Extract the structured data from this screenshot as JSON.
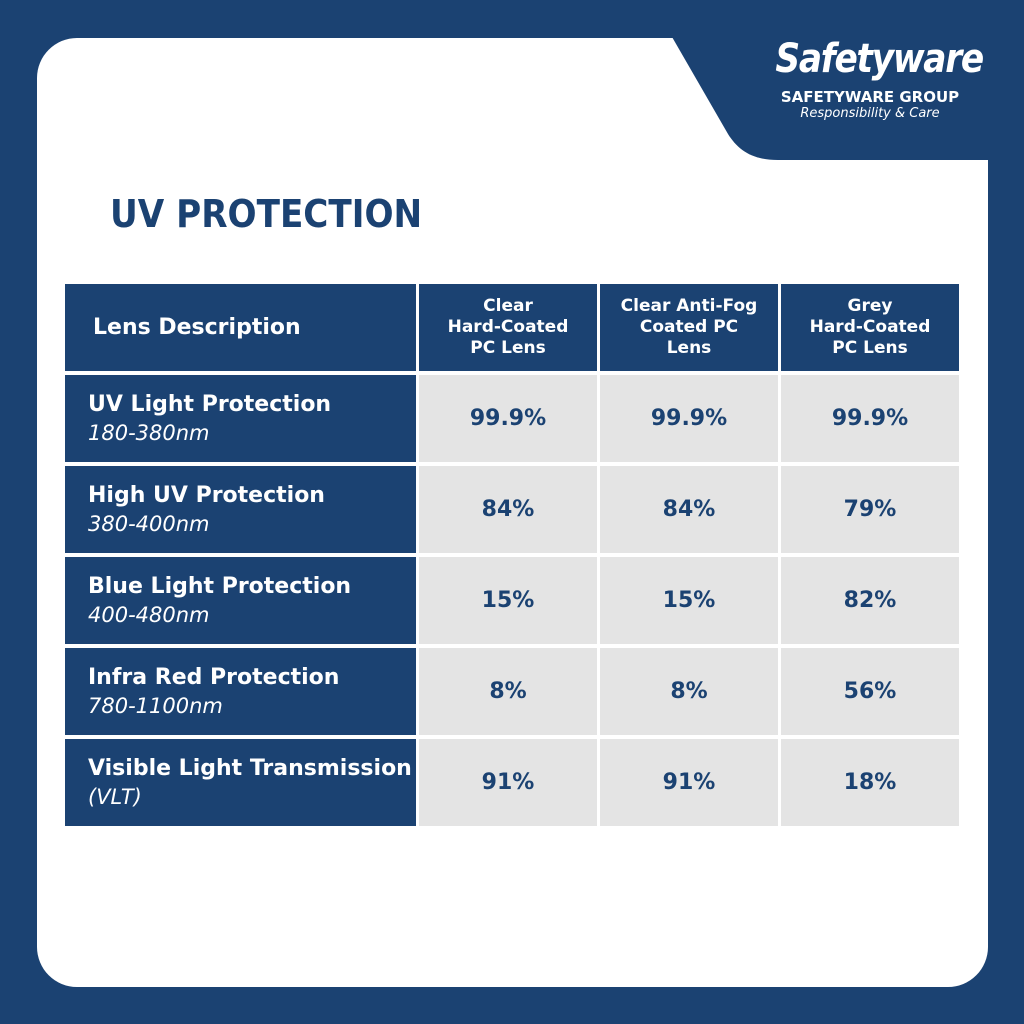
{
  "brand": {
    "logo_text": "Safetyware",
    "group_name": "SAFETYWARE GROUP",
    "tagline": "Responsibility & Care"
  },
  "page": {
    "title": "UV PROTECTION"
  },
  "colors": {
    "navy": "#1b4272",
    "cell_grey": "#e4e4e4",
    "white": "#ffffff"
  },
  "table": {
    "header_label": "Lens Description",
    "columns": [
      "Clear\nHard-Coated\nPC Lens",
      "Clear Anti-Fog\nCoated PC\nLens",
      "Grey\nHard-Coated\nPC Lens"
    ],
    "rows": [
      {
        "label": "UV Light Protection",
        "range": "180-380nm",
        "values": [
          "99.9%",
          "99.9%",
          "99.9%"
        ]
      },
      {
        "label": "High UV Protection",
        "range": "380-400nm",
        "values": [
          "84%",
          "84%",
          "79%"
        ]
      },
      {
        "label": "Blue Light Protection",
        "range": "400-480nm",
        "values": [
          "15%",
          "15%",
          "82%"
        ]
      },
      {
        "label": "Infra Red Protection",
        "range": "780-1100nm",
        "values": [
          "8%",
          "8%",
          "56%"
        ]
      },
      {
        "label": "Visible Light Transmission",
        "range": "(VLT)",
        "values": [
          "91%",
          "91%",
          "18%"
        ]
      }
    ]
  }
}
